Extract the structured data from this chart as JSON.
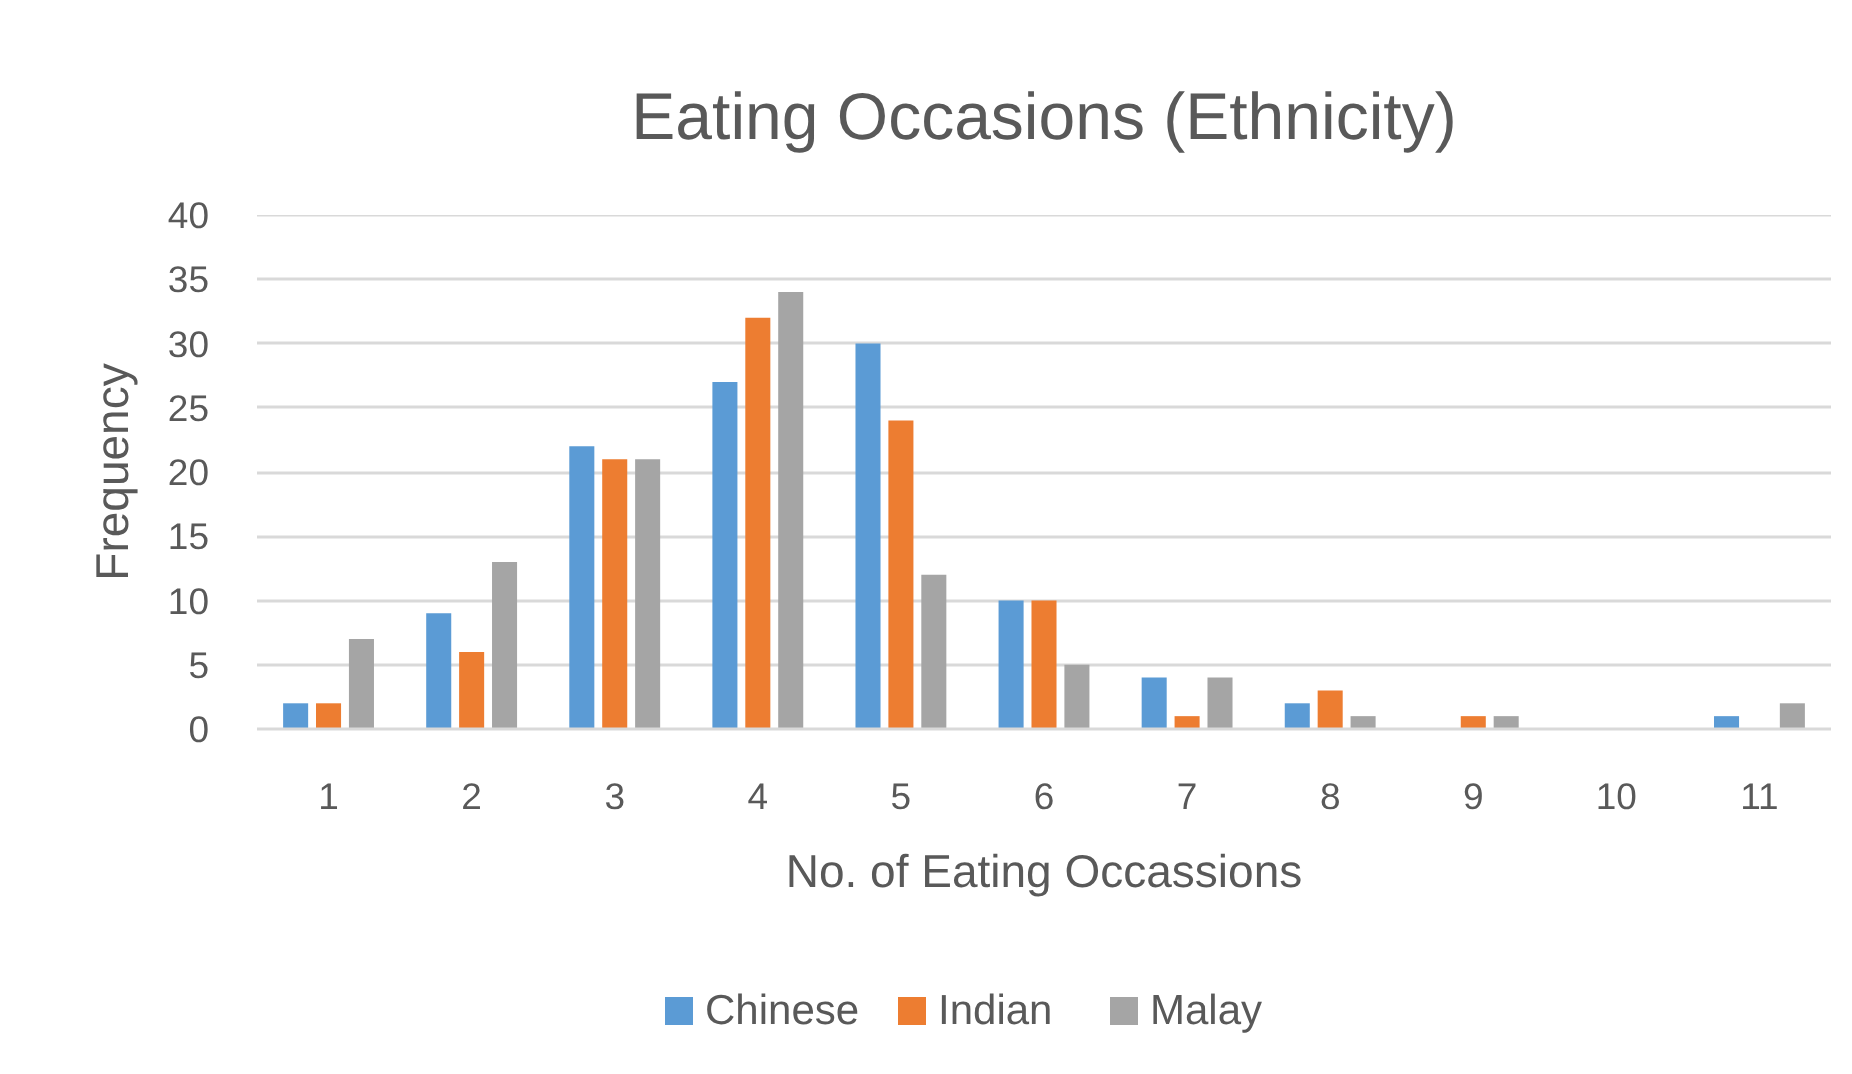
{
  "chart_data": {
    "type": "bar",
    "title": "Eating Occasions (Ethnicity)",
    "xlabel": "No. of Eating Occassions",
    "ylabel": "Frequency",
    "categories": [
      "1",
      "2",
      "3",
      "4",
      "5",
      "6",
      "7",
      "8",
      "9",
      "10",
      "11"
    ],
    "series": [
      {
        "name": "Chinese",
        "color": "#5b9bd5",
        "values": [
          2,
          9,
          22,
          27,
          30,
          10,
          4,
          2,
          0,
          0,
          1
        ]
      },
      {
        "name": "Indian",
        "color": "#ed7d31",
        "values": [
          2,
          6,
          21,
          32,
          24,
          10,
          1,
          3,
          1,
          0,
          0
        ]
      },
      {
        "name": "Malay",
        "color": "#a5a5a5",
        "values": [
          7,
          13,
          21,
          34,
          12,
          5,
          4,
          1,
          1,
          0,
          2
        ]
      }
    ],
    "ylim": [
      0,
      40
    ],
    "yticks": [
      0,
      5,
      10,
      15,
      20,
      25,
      30,
      35,
      40
    ],
    "grid": "y",
    "legend": "bottom"
  }
}
